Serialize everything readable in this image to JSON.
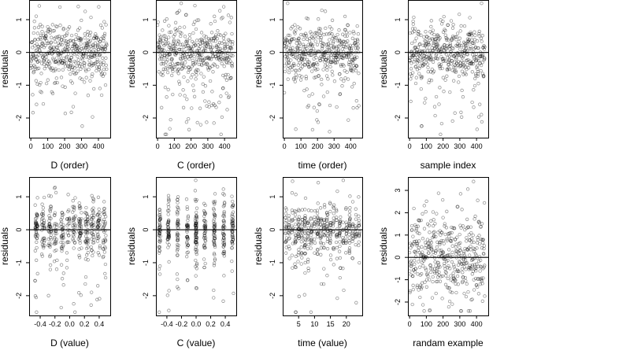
{
  "chart_data": [
    {
      "type": "scatter",
      "xlabel": "D (order)",
      "ylabel": "residuals",
      "xlim": [
        -10,
        470
      ],
      "ylim": [
        -2.6,
        1.6
      ],
      "xticks": [
        0,
        100,
        200,
        300,
        400
      ],
      "xticklabels": [
        "0",
        "100",
        "200",
        "300",
        "400"
      ],
      "yticks": [
        -2,
        -1,
        0,
        1
      ],
      "yticklabels": [
        "-2",
        "-1",
        "0",
        "1"
      ],
      "hline": 0,
      "pattern": "index",
      "n": 450,
      "seed": 11
    },
    {
      "type": "scatter",
      "xlabel": "C (order)",
      "ylabel": "residuals",
      "xlim": [
        -10,
        470
      ],
      "ylim": [
        -2.6,
        1.6
      ],
      "xticks": [
        0,
        100,
        200,
        300,
        400
      ],
      "xticklabels": [
        "0",
        "100",
        "200",
        "300",
        "400"
      ],
      "yticks": [
        -2,
        -1,
        0,
        1
      ],
      "yticklabels": [
        "-2",
        "-1",
        "0",
        "1"
      ],
      "hline": 0,
      "pattern": "index",
      "n": 450,
      "seed": 23
    },
    {
      "type": "scatter",
      "xlabel": "time (order)",
      "ylabel": "residuals",
      "xlim": [
        -10,
        470
      ],
      "ylim": [
        -2.6,
        1.6
      ],
      "xticks": [
        0,
        100,
        200,
        300,
        400
      ],
      "xticklabels": [
        "0",
        "100",
        "200",
        "300",
        "400"
      ],
      "yticks": [
        -2,
        -1,
        0,
        1
      ],
      "yticklabels": [
        "-2",
        "-1",
        "0",
        "1"
      ],
      "hline": 0,
      "pattern": "index",
      "n": 450,
      "seed": 37
    },
    {
      "type": "scatter",
      "xlabel": "sample index",
      "ylabel": "residuals",
      "xlim": [
        -10,
        470
      ],
      "ylim": [
        -2.6,
        1.6
      ],
      "xticks": [
        0,
        100,
        200,
        300,
        400
      ],
      "xticklabels": [
        "0",
        "100",
        "200",
        "300",
        "400"
      ],
      "yticks": [
        -2,
        -1,
        0,
        1
      ],
      "yticklabels": [
        "-2",
        "-1",
        "0",
        "1"
      ],
      "hline": 0,
      "pattern": "index",
      "n": 450,
      "seed": 41
    },
    {
      "type": "scatter",
      "xlabel": "D (value)",
      "ylabel": "residuals",
      "xlim": [
        -0.55,
        0.55
      ],
      "ylim": [
        -2.6,
        1.6
      ],
      "xticks": [
        -0.4,
        -0.2,
        0.0,
        0.2,
        0.4
      ],
      "xticklabels": [
        "-0.4",
        "-0.2",
        "0.0",
        "0.2",
        "0.4"
      ],
      "yticks": [
        -2,
        -1,
        0,
        1
      ],
      "yticklabels": [
        "-2",
        "-1",
        "0",
        "1"
      ],
      "hline": 0,
      "pattern": "columns",
      "columns": [
        -0.45,
        -0.36,
        -0.27,
        -0.19,
        -0.1,
        -0.02,
        0.06,
        0.14,
        0.23,
        0.31,
        0.39,
        0.47
      ],
      "jitter": 0.02,
      "n": 450,
      "seed": 53
    },
    {
      "type": "scatter",
      "xlabel": "C (value)",
      "ylabel": "residuals",
      "xlim": [
        -0.55,
        0.55
      ],
      "ylim": [
        -2.6,
        1.6
      ],
      "xticks": [
        -0.4,
        -0.2,
        0.0,
        0.2,
        0.4
      ],
      "xticklabels": [
        "-0.4",
        "-0.2",
        "0.0",
        "0.2",
        "0.4"
      ],
      "yticks": [
        -2,
        -1,
        0,
        1
      ],
      "yticklabels": [
        "-2",
        "-1",
        "0",
        "1"
      ],
      "hline": 0,
      "pattern": "columns",
      "columns": [
        -0.5,
        -0.38,
        -0.25,
        -0.12,
        0.0,
        0.12,
        0.25,
        0.38,
        0.5
      ],
      "jitter": 0.012,
      "n": 450,
      "seed": 67
    },
    {
      "type": "scatter",
      "xlabel": "time (value)",
      "ylabel": "residuals",
      "xlim": [
        0,
        25
      ],
      "ylim": [
        -2.6,
        1.6
      ],
      "xticks": [
        5,
        10,
        15,
        20
      ],
      "xticklabels": [
        "5",
        "10",
        "15",
        "20"
      ],
      "yticks": [
        -2,
        -1,
        0,
        1
      ],
      "yticklabels": [
        "-2",
        "-1",
        "0",
        "1"
      ],
      "hline": 0,
      "pattern": "columns",
      "columns": [
        1,
        2,
        3,
        4,
        5,
        6,
        7,
        8,
        9,
        10,
        11,
        12,
        13,
        14,
        15,
        16,
        17,
        18,
        19,
        20,
        21,
        22,
        23,
        24
      ],
      "jitter": 0.18,
      "n": 450,
      "seed": 79
    },
    {
      "type": "scatter",
      "xlabel": "randam example",
      "ylabel": "residuals",
      "xlim": [
        -10,
        470
      ],
      "ylim": [
        -2.6,
        3.6
      ],
      "xticks": [
        0,
        100,
        200,
        300,
        400
      ],
      "xticklabels": [
        "0",
        "100",
        "200",
        "300",
        "400"
      ],
      "yticks": [
        -2,
        -1,
        0,
        1,
        2,
        3
      ],
      "yticklabels": [
        "-2",
        "-1",
        "0",
        "1",
        "2",
        "3"
      ],
      "hline": 0,
      "pattern": "random",
      "n": 450,
      "seed": 97
    }
  ]
}
